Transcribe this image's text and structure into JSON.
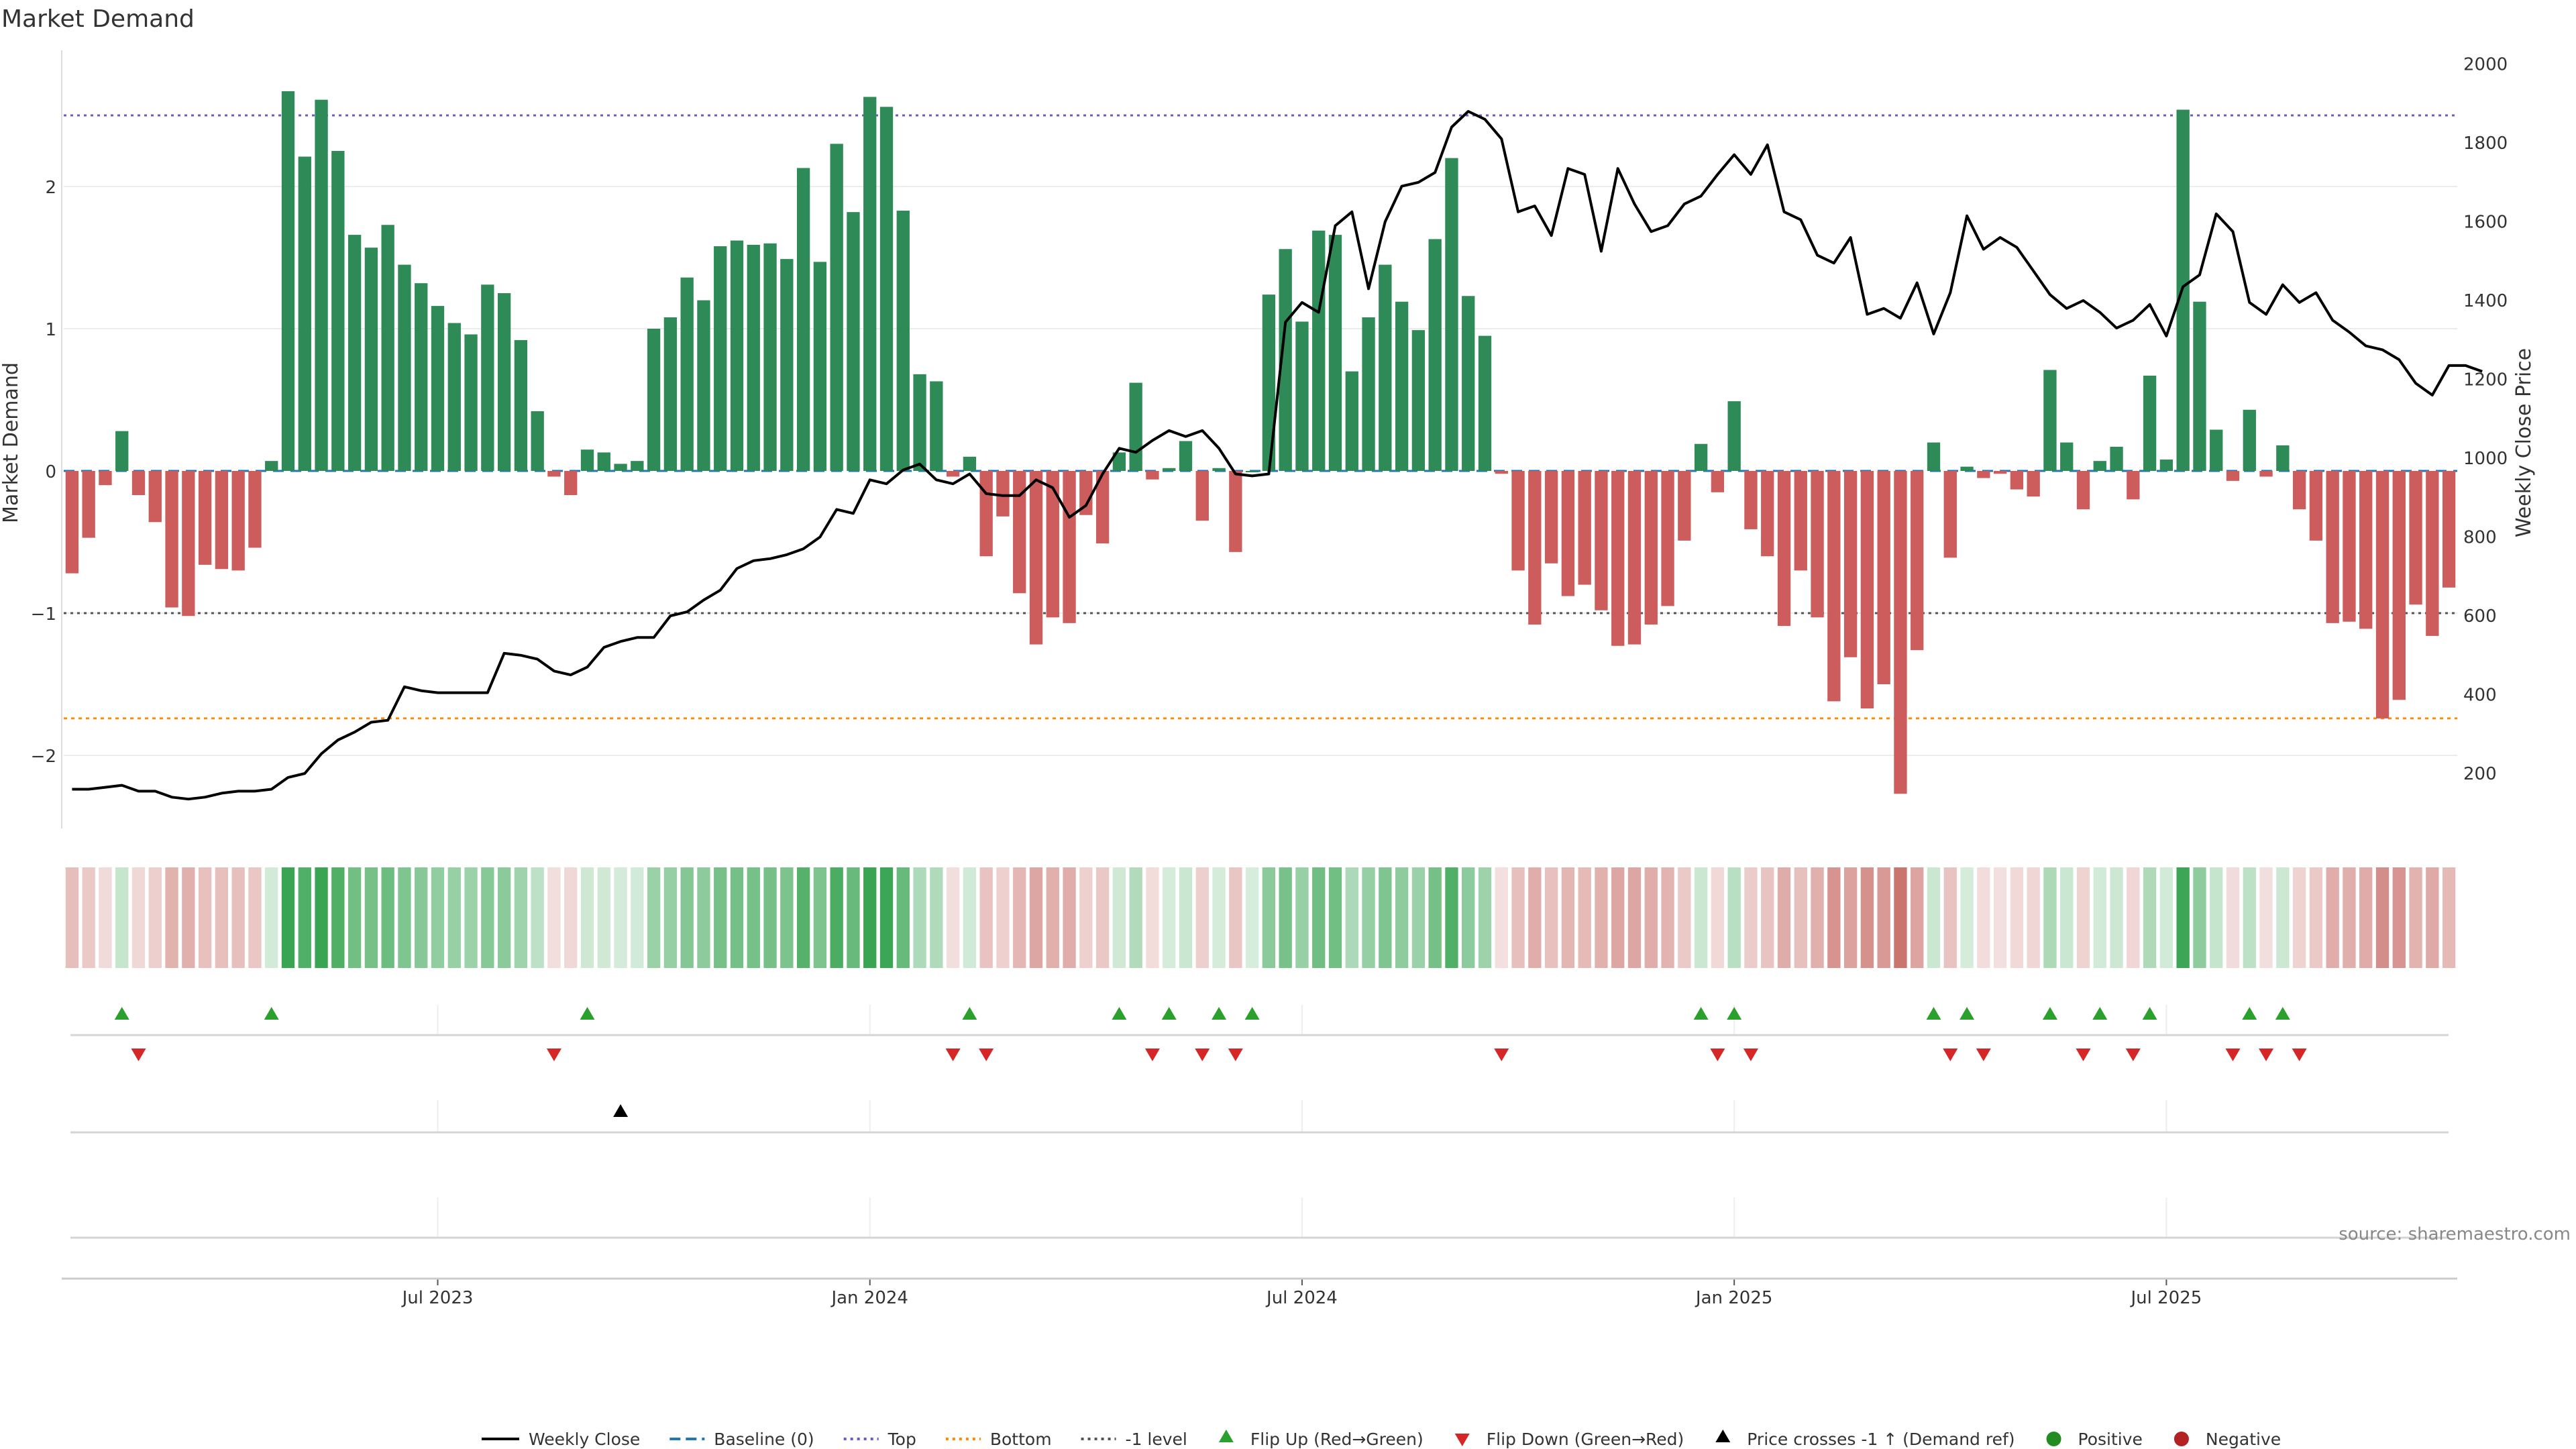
{
  "chart_data": {
    "type": "bar",
    "title": "Market Demand",
    "ylabel": "Market Demand",
    "y2label": "Weekly Close Price",
    "ylim": [
      -2.55,
      2.95
    ],
    "y2lim": [
      80,
      2060
    ],
    "y_ticks": [
      -2,
      -1,
      0,
      1,
      2
    ],
    "y2_ticks": [
      200,
      400,
      600,
      800,
      1000,
      1200,
      1400,
      1600,
      1800,
      2000
    ],
    "x_ticks": [
      {
        "label": "Jul 2023",
        "index": 22
      },
      {
        "label": "Jan 2024",
        "index": 48
      },
      {
        "label": "Jul 2024",
        "index": 74
      },
      {
        "label": "Jan 2025",
        "index": 100
      },
      {
        "label": "Jul 2025",
        "index": 126
      }
    ],
    "reference_lines": {
      "top": 2.5,
      "bottom": -1.74,
      "minus_one": -1,
      "baseline": 0
    },
    "grid": true,
    "legend_position": "bottom-center",
    "colors": {
      "positive": "#2e8b57",
      "negative": "#cd5c5c",
      "top_line": "#6a5acd",
      "bottom_line": "#ff8c00",
      "minus_one_line": "#555555",
      "baseline": "#1f77b4",
      "close_line": "#000000",
      "flip_up": "#2ca02c",
      "flip_down": "#d62728",
      "legend_positive": "#228b22",
      "legend_negative": "#b22222"
    },
    "demand": [
      -0.72,
      -0.47,
      -0.1,
      0.28,
      -0.17,
      -0.36,
      -0.96,
      -1.02,
      -0.66,
      -0.69,
      -0.7,
      -0.54,
      0.07,
      2.67,
      2.21,
      2.61,
      2.25,
      1.66,
      1.57,
      1.73,
      1.45,
      1.32,
      1.16,
      1.04,
      0.96,
      1.31,
      1.25,
      0.92,
      0.42,
      -0.04,
      -0.17,
      0.15,
      0.13,
      0.05,
      0.07,
      1.0,
      1.08,
      1.36,
      1.2,
      1.58,
      1.62,
      1.59,
      1.6,
      1.49,
      2.13,
      1.47,
      2.3,
      1.82,
      2.63,
      2.56,
      1.83,
      0.68,
      0.63,
      -0.04,
      0.1,
      -0.6,
      -0.32,
      -0.86,
      -1.22,
      -1.03,
      -1.07,
      -0.31,
      -0.51,
      0.13,
      0.62,
      -0.06,
      0.02,
      0.21,
      -0.35,
      0.02,
      -0.57,
      0.0,
      1.24,
      1.56,
      1.05,
      1.69,
      1.66,
      0.7,
      1.08,
      1.45,
      1.19,
      0.99,
      1.63,
      2.2,
      1.23,
      0.95,
      -0.02,
      -0.7,
      -1.08,
      -0.65,
      -0.88,
      -0.8,
      -0.98,
      -1.23,
      -1.22,
      -1.08,
      -0.95,
      -0.49,
      0.19,
      -0.15,
      0.49,
      -0.41,
      -0.6,
      -1.09,
      -0.7,
      -1.03,
      -1.62,
      -1.31,
      -1.67,
      -1.5,
      -2.27,
      -1.26,
      0.2,
      -0.61,
      0.03,
      -0.05,
      -0.02,
      -0.13,
      -0.18,
      0.71,
      0.2,
      -0.27,
      0.07,
      0.17,
      -0.2,
      0.67,
      0.08,
      2.54,
      1.19,
      0.29,
      -0.07,
      0.43,
      -0.04,
      0.18,
      -0.27,
      -0.49,
      -1.07,
      -1.06,
      -1.11,
      -1.74,
      -1.61,
      -0.94,
      -1.16,
      -0.82
    ],
    "weekly_close": [
      160,
      160,
      165,
      170,
      155,
      155,
      140,
      135,
      140,
      150,
      155,
      155,
      160,
      190,
      200,
      250,
      285,
      305,
      330,
      335,
      420,
      410,
      405,
      405,
      405,
      405,
      505,
      500,
      490,
      460,
      450,
      470,
      520,
      535,
      545,
      545,
      600,
      610,
      640,
      665,
      720,
      740,
      745,
      755,
      770,
      800,
      870,
      860,
      945,
      935,
      970,
      985,
      945,
      935,
      960,
      910,
      905,
      905,
      945,
      925,
      850,
      880,
      960,
      1025,
      1015,
      1045,
      1070,
      1055,
      1070,
      1025,
      960,
      955,
      960,
      1345,
      1395,
      1370,
      1590,
      1625,
      1430,
      1600,
      1690,
      1700,
      1725,
      1840,
      1880,
      1860,
      1810,
      1625,
      1640,
      1565,
      1735,
      1720,
      1525,
      1735,
      1645,
      1575,
      1590,
      1645,
      1665,
      1720,
      1770,
      1720,
      1795,
      1625,
      1605,
      1515,
      1495,
      1560,
      1365,
      1380,
      1355,
      1445,
      1315,
      1420,
      1615,
      1530,
      1560,
      1535,
      1475,
      1415,
      1380,
      1400,
      1370,
      1330,
      1350,
      1390,
      1310,
      1435,
      1465,
      1620,
      1575,
      1395,
      1365,
      1440,
      1395,
      1420,
      1350,
      1320,
      1285,
      1275,
      1250,
      1190,
      1160,
      1235,
      1235,
      1220
    ],
    "flip_up": [
      3,
      12,
      31,
      54,
      63,
      66,
      69,
      71,
      98,
      100,
      112,
      114,
      119,
      122,
      125,
      131,
      133
    ],
    "flip_down": [
      4,
      29,
      53,
      55,
      65,
      68,
      70,
      86,
      99,
      101,
      113,
      115,
      121,
      124,
      130,
      132,
      134
    ],
    "price_cross_up": [
      33
    ],
    "source_note": "source: sharemaestro.com",
    "legend": [
      {
        "label": "Weekly Close",
        "type": "line"
      },
      {
        "label": "Baseline (0)",
        "type": "dash"
      },
      {
        "label": "Top",
        "type": "dot"
      },
      {
        "label": "Bottom",
        "type": "dot"
      },
      {
        "label": "-1 level",
        "type": "dot"
      },
      {
        "label": "Flip Up (Red→Green)",
        "type": "tri-up"
      },
      {
        "label": "Flip Down (Green→Red)",
        "type": "tri-down"
      },
      {
        "label": "Price crosses -1 ↑ (Demand ref)",
        "type": "tri-up-black"
      },
      {
        "label": "Positive",
        "type": "dot-green"
      },
      {
        "label": "Negative",
        "type": "dot-red"
      }
    ]
  }
}
